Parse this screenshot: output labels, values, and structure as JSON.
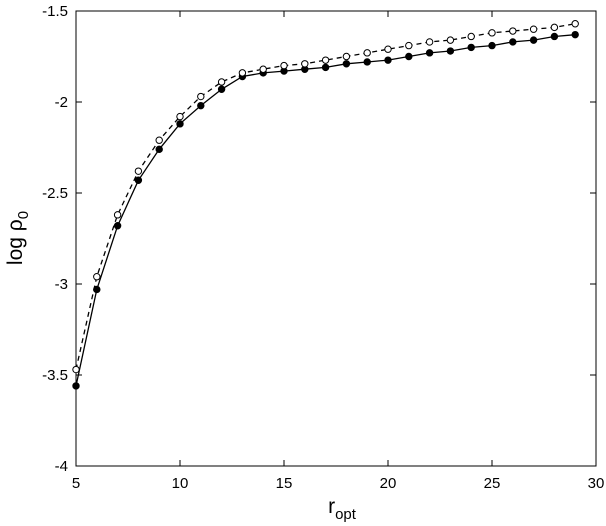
{
  "chart_data": {
    "type": "line",
    "title": "",
    "xlabel": "r",
    "xlabel_sub": "opt",
    "ylabel": "log ρ",
    "ylabel_sub": "0",
    "xlim": [
      5,
      30
    ],
    "ylim": [
      -4,
      -1.5
    ],
    "xticks": [
      5,
      10,
      15,
      20,
      25,
      30
    ],
    "yticks": [
      -4,
      -3.5,
      -3,
      -2.5,
      -2,
      -1.5
    ],
    "xtick_labels": [
      "5",
      "10",
      "15",
      "20",
      "25",
      "30"
    ],
    "ytick_labels": [
      "-4",
      "-3.5",
      "-3",
      "-2.5",
      "-2",
      "-1.5"
    ],
    "grid": false,
    "legend": "none",
    "x": [
      5,
      6,
      7,
      8,
      9,
      10,
      11,
      12,
      13,
      14,
      15,
      16,
      17,
      18,
      19,
      20,
      21,
      22,
      23,
      24,
      25,
      26,
      27,
      28,
      29
    ],
    "series": [
      {
        "style": "solid",
        "marker": "filled-circle",
        "color": "#000000",
        "values": [
          -3.56,
          -3.03,
          -2.68,
          -2.43,
          -2.26,
          -2.12,
          -2.02,
          -1.93,
          -1.86,
          -1.84,
          -1.83,
          -1.82,
          -1.81,
          -1.79,
          -1.78,
          -1.77,
          -1.75,
          -1.73,
          -1.72,
          -1.7,
          -1.69,
          -1.67,
          -1.66,
          -1.64,
          -1.63
        ]
      },
      {
        "style": "dashed",
        "marker": "open-circle",
        "color": "#000000",
        "values": [
          -3.47,
          -2.96,
          -2.62,
          -2.38,
          -2.21,
          -2.08,
          -1.97,
          -1.89,
          -1.84,
          -1.82,
          -1.8,
          -1.79,
          -1.77,
          -1.75,
          -1.73,
          -1.71,
          -1.69,
          -1.67,
          -1.66,
          -1.64,
          -1.62,
          -1.61,
          -1.6,
          -1.59,
          -1.57
        ]
      }
    ]
  }
}
